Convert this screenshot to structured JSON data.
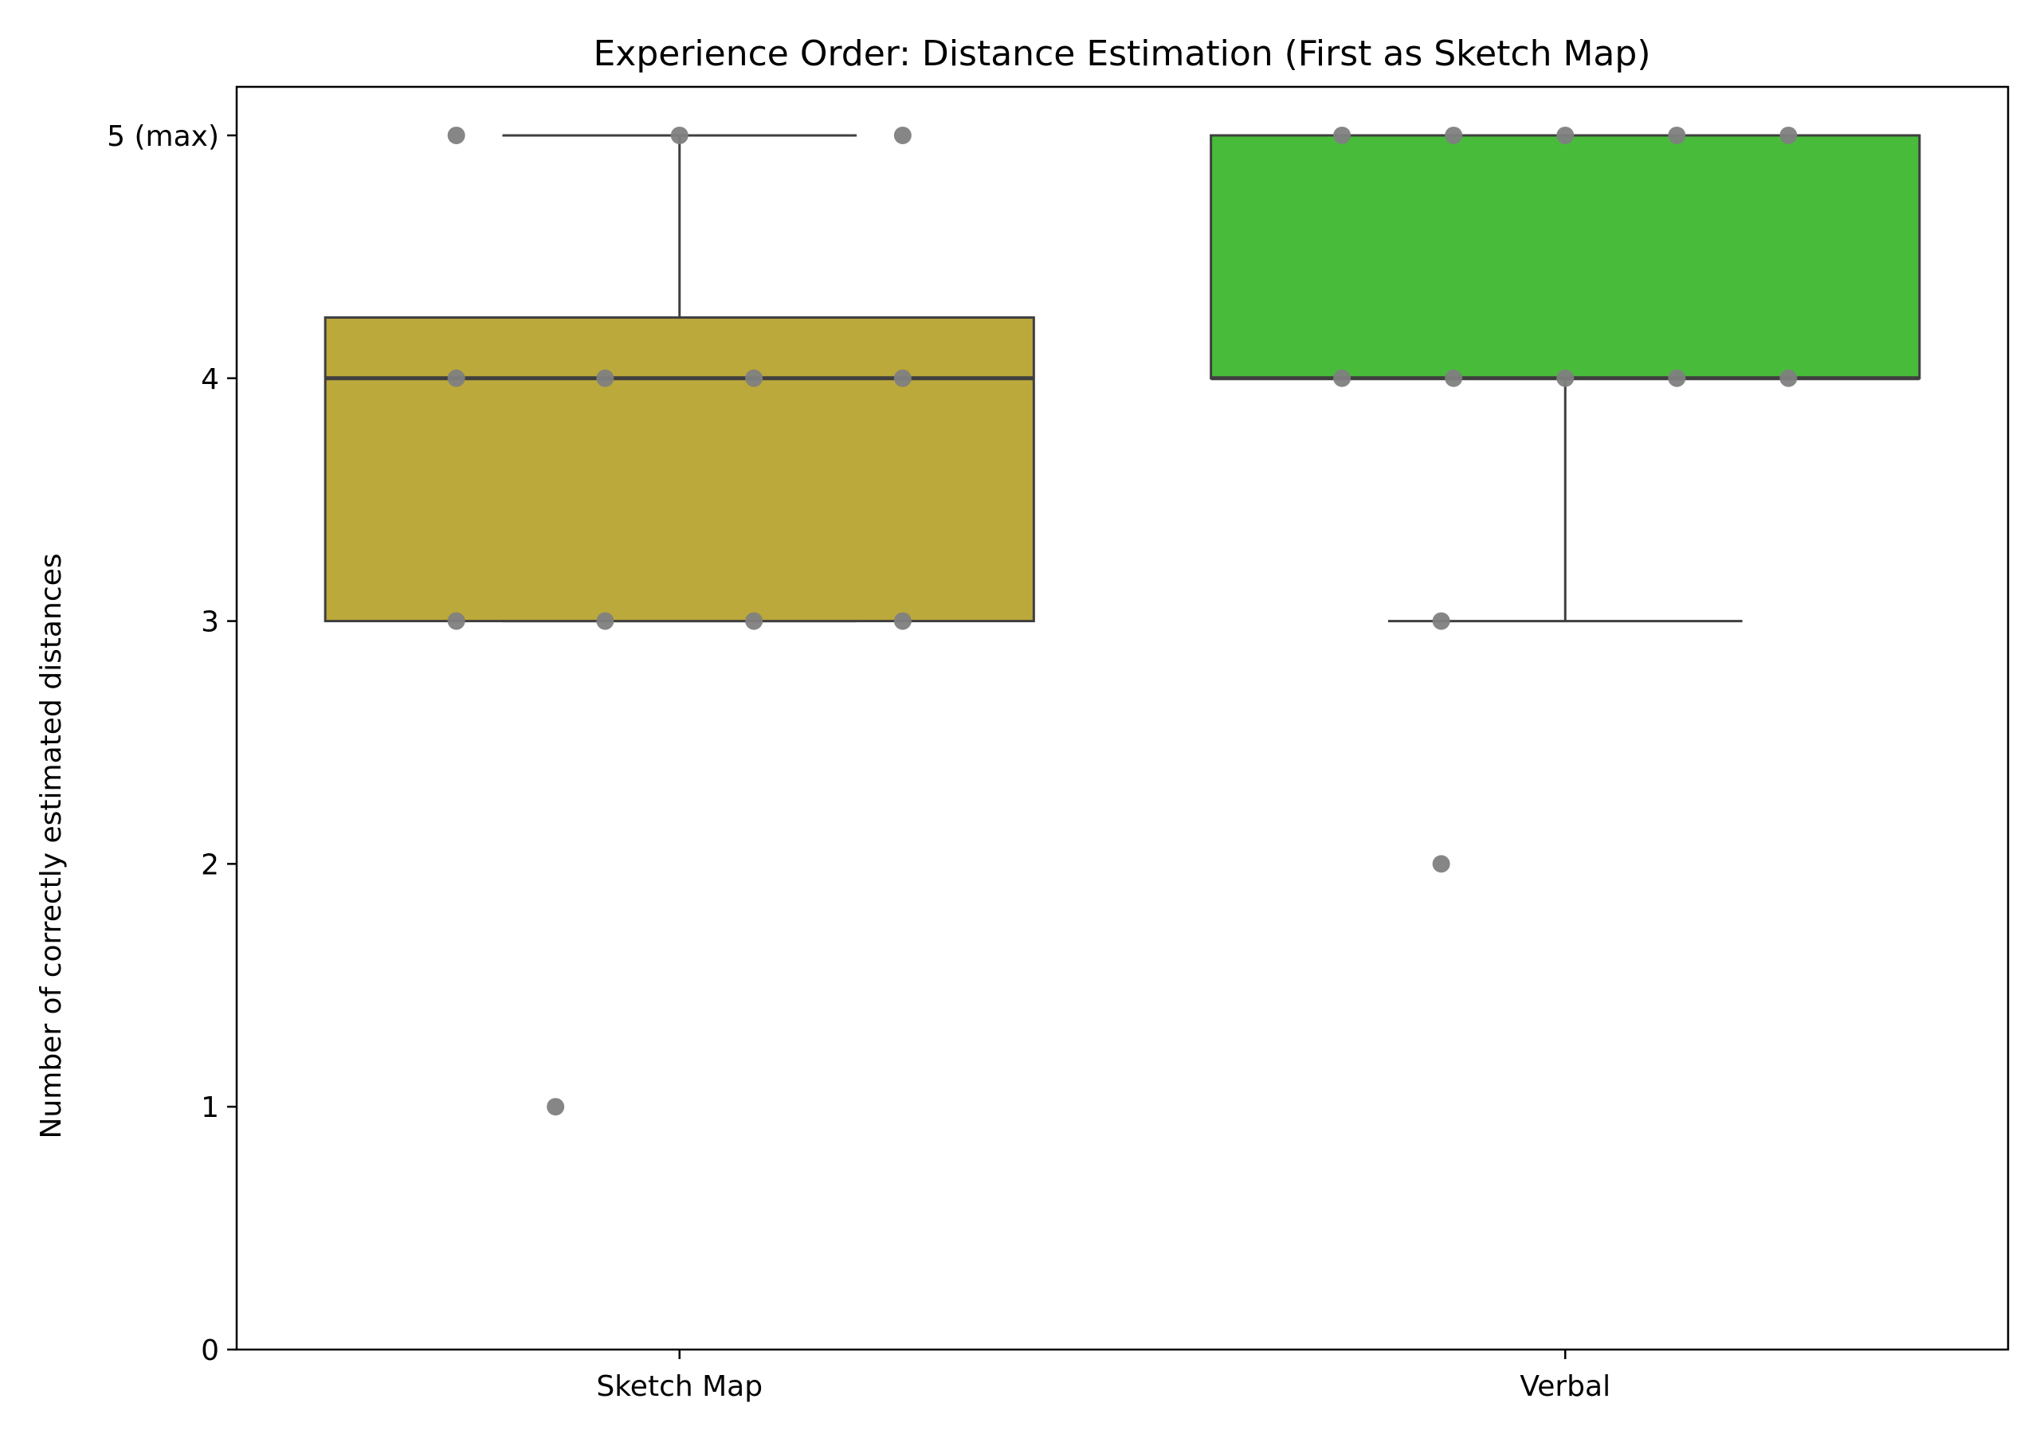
{
  "chart_data": {
    "type": "box",
    "title": "Experience Order: Distance Estimation (First as Sketch Map)",
    "xlabel": "",
    "ylabel": "Number of correctly estimated distances",
    "ylim": [
      0,
      5.2
    ],
    "yticks": [
      {
        "value": 0,
        "label": "0"
      },
      {
        "value": 1,
        "label": "1"
      },
      {
        "value": 2,
        "label": "2"
      },
      {
        "value": 3,
        "label": "3"
      },
      {
        "value": 4,
        "label": "4"
      },
      {
        "value": 5,
        "label": "5 (max)"
      }
    ],
    "categories": [
      "Sketch Map",
      "Verbal"
    ],
    "grid": false,
    "boxes": [
      {
        "category": "Sketch Map",
        "color": "#BCA93B",
        "whisker_low": 3,
        "q1": 3,
        "median": 4,
        "q3": 4.25,
        "whisker_high": 5
      },
      {
        "category": "Verbal",
        "color": "#48BC3A",
        "whisker_low": 3,
        "q1": 4,
        "median": 4,
        "q3": 5,
        "whisker_high": 5
      }
    ],
    "points": [
      {
        "category": "Sketch Map",
        "values": [
          5,
          5,
          5,
          4,
          4,
          4,
          4,
          3,
          3,
          3,
          3,
          1
        ]
      },
      {
        "category": "Verbal",
        "values": [
          5,
          5,
          5,
          5,
          5,
          4,
          4,
          4,
          4,
          4,
          3,
          2
        ]
      }
    ],
    "point_color": "#808080",
    "line_color": "#3f3f3f"
  }
}
